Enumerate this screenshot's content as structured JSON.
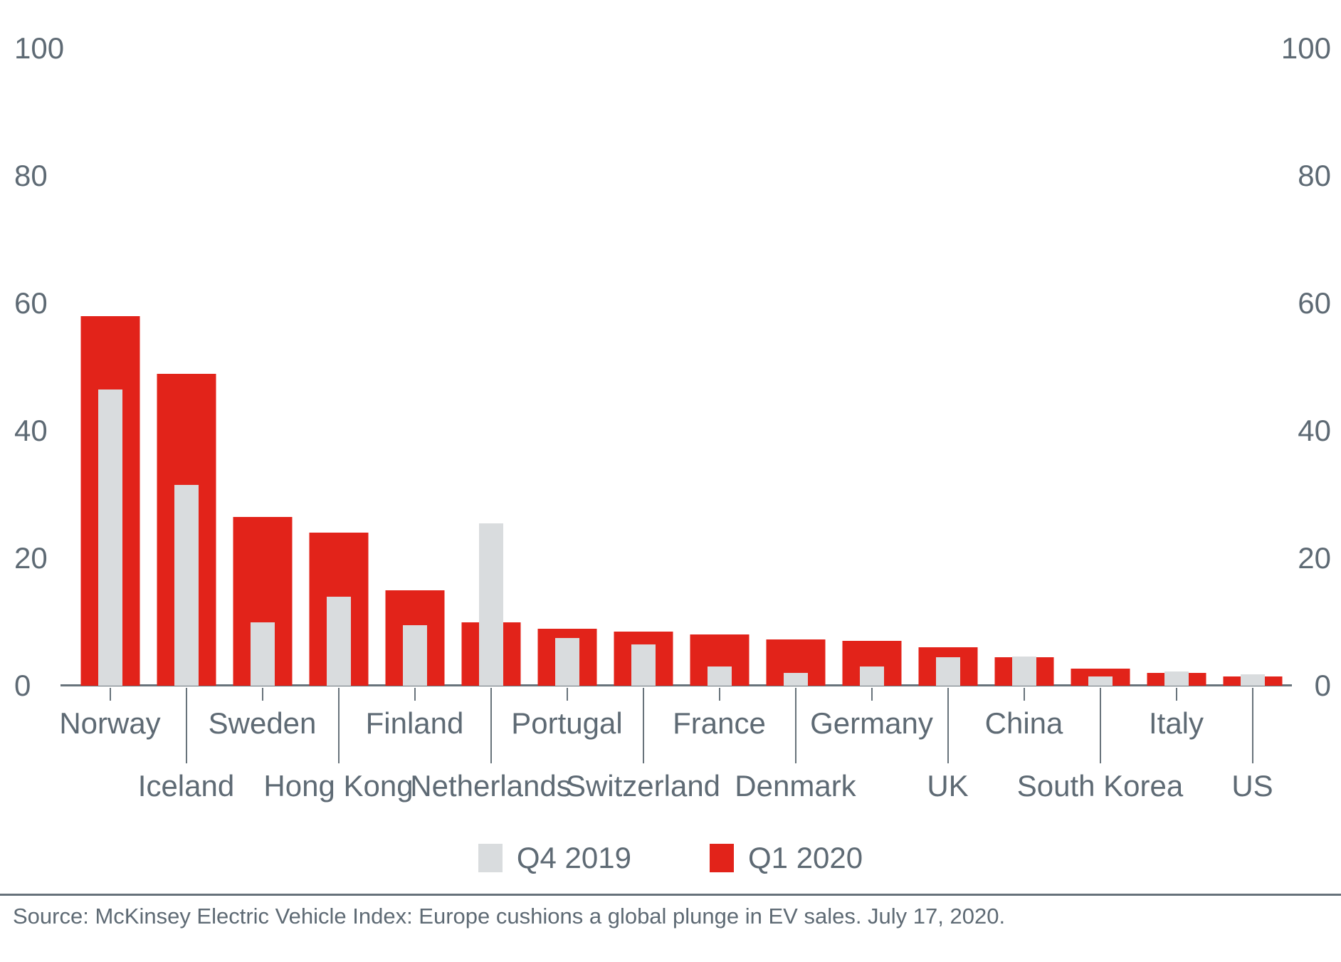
{
  "chart_data": {
    "type": "bar",
    "title": "",
    "categories": [
      "Norway",
      "Iceland",
      "Sweden",
      "Hong Kong",
      "Finland",
      "Netherlands",
      "Portugal",
      "Switzerland",
      "France",
      "Denmark",
      "Germany",
      "UK",
      "China",
      "South Korea",
      "Italy",
      "US"
    ],
    "series": [
      {
        "name": "Q4 2019",
        "color": "#d9dcde",
        "values": [
          46.5,
          31.5,
          10,
          14,
          9.5,
          25.5,
          7.5,
          6.5,
          3,
          2,
          3,
          4.5,
          4.6,
          1.5,
          2.2,
          1.8
        ]
      },
      {
        "name": "Q1 2020",
        "color": "#e2231a",
        "values": [
          58,
          49,
          26.5,
          24,
          15,
          10,
          9,
          8.5,
          8,
          7.3,
          7,
          6,
          4.5,
          2.7,
          2,
          1.5
        ]
      }
    ],
    "ylim": [
      0,
      100
    ],
    "y_ticks": [
      100,
      80,
      60,
      40,
      20,
      0
    ],
    "y_tick_sides": "both",
    "grid": false,
    "legend_position": "bottom-center",
    "xlabel": "",
    "ylabel": ""
  },
  "legend": {
    "q4_label": "Q4 2019",
    "q1_label": "Q1 2020"
  },
  "footer": {
    "source_text": "Source: McKinsey Electric Vehicle Index: Europe cushions a global plunge in EV sales. July 17, 2020."
  },
  "colors": {
    "q4_gray": "#d9dcde",
    "q1_red": "#e2231a",
    "axis_text": "#5e6a74",
    "axis_line": "#68737b"
  }
}
